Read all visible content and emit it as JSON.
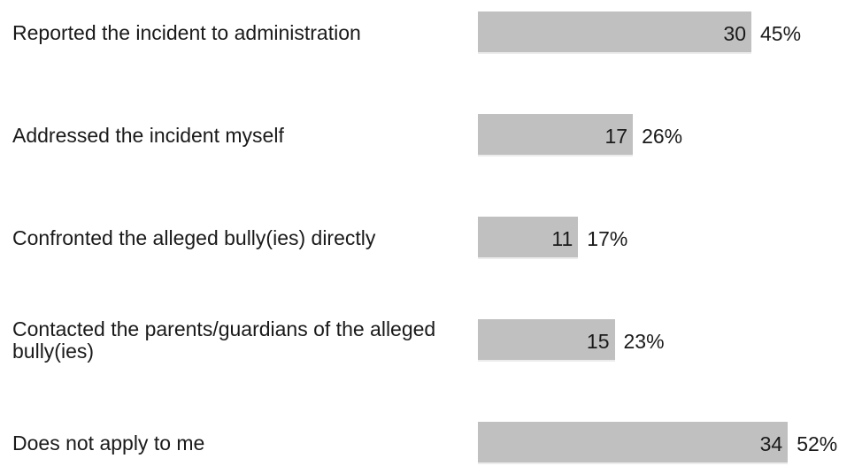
{
  "chart_data": {
    "type": "bar",
    "orientation": "horizontal",
    "color": "#c0c0c0",
    "categories": [
      "Reported the incident to administration",
      "Addressed the incident myself",
      "Confronted the alleged bully(ies) directly",
      "Contacted the parents/guardians of the alleged bully(ies)",
      "Does not apply to me"
    ],
    "values": [
      30,
      17,
      11,
      15,
      34
    ],
    "percentages": [
      {
        "value": 45,
        "label": "45%"
      },
      {
        "value": 26,
        "label": "26%"
      },
      {
        "value": 17,
        "label": "17%"
      },
      {
        "value": 23,
        "label": "23%"
      },
      {
        "value": 52,
        "label": "52%"
      }
    ]
  }
}
